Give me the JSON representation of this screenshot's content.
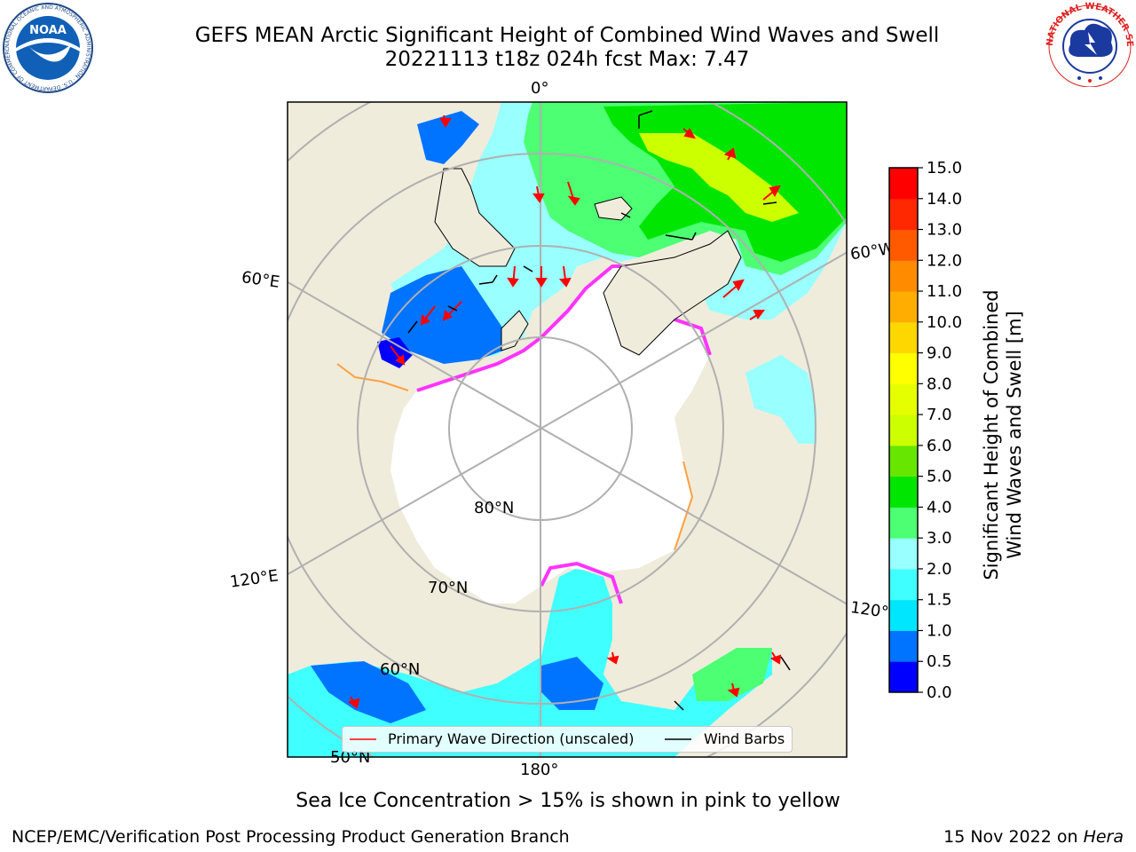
{
  "title": {
    "line1": "GEFS MEAN Arctic Significant Height of Combined Wind Waves and Swell",
    "line2": "20221113 t18z 024h fcst   Max: 7.47"
  },
  "logos": {
    "noaa": {
      "text": "NOAA",
      "ring_text": "NATIONAL OCEANIC AND ATMOSPHERIC ADMINISTRATION · U.S. DEPARTMENT OF COMMERCE"
    },
    "nws": {
      "ring_text": "NATIONAL WEATHER SERVICE"
    }
  },
  "map": {
    "longitude_labels": [
      "0°",
      "60°E",
      "60°W",
      "120°E",
      "120°",
      "180°"
    ],
    "latitude_labels": [
      "80°N",
      "70°N",
      "60°N",
      "50°N"
    ],
    "colors": {
      "land": "#efecdc",
      "ice": "#ffffff",
      "grid": "#b0b0b0",
      "ice_edge_pink": "#ff33ff",
      "ice_edge_orange": "#ffa040"
    }
  },
  "legend": {
    "wave_direction_label": "Primary Wave Direction (unscaled)",
    "wind_barbs_label": "Wind Barbs",
    "wave_direction_color": "#ff0000",
    "wind_barbs_color": "#000000"
  },
  "colorbar": {
    "title_line1": "Significant Height of Combined",
    "title_line2": "Wind Waves and Swell [m]",
    "ticks": [
      "0.0",
      "0.5",
      "1.0",
      "1.5",
      "2.0",
      "3.0",
      "4.0",
      "5.0",
      "6.0",
      "7.0",
      "8.0",
      "9.0",
      "10.0",
      "11.0",
      "12.0",
      "13.0",
      "14.0",
      "15.0"
    ],
    "colors": [
      "#0000ff",
      "#0073ff",
      "#00e6ff",
      "#40ffff",
      "#99ffff",
      "#4cff73",
      "#00e600",
      "#66e600",
      "#ccff00",
      "#e6ff00",
      "#ffff00",
      "#ffd700",
      "#ffad00",
      "#ff8c00",
      "#ff5a00",
      "#ff2800",
      "#ff0000"
    ]
  },
  "caption": "Sea Ice Concentration > 15% is shown in pink to yellow",
  "footer": {
    "left": "NCEP/EMC/Verification Post Processing Product Generation Branch",
    "right_date": "15 Nov 2022 on ",
    "right_host": "Hera"
  }
}
